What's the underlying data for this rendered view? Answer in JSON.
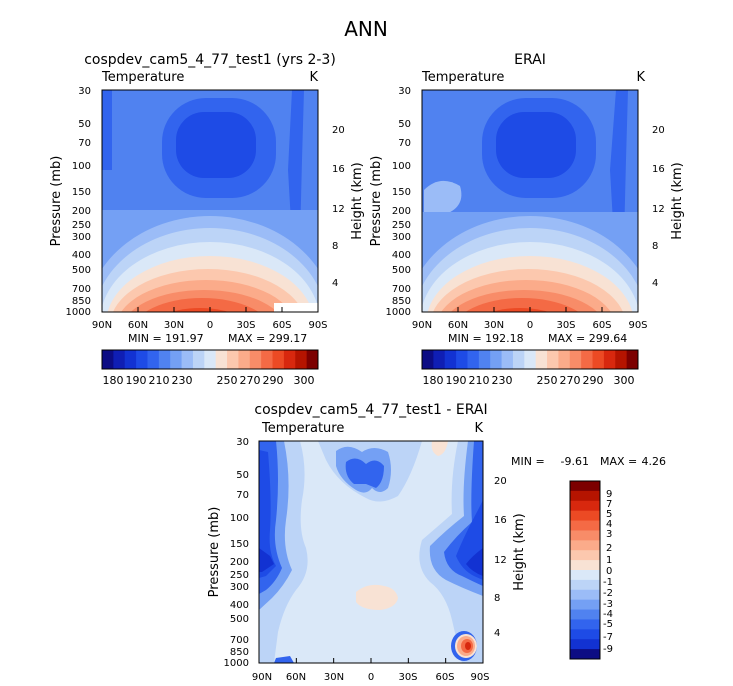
{
  "figure_title": "ANN",
  "chart_data": [
    {
      "type": "heatmap",
      "subtitle": "cospdev_cam5_4_77_test1 (yrs 2-3)",
      "variable": "Temperature",
      "units": "K",
      "ylabel": "Pressure (mb)",
      "ylabel_right": "Height (km)",
      "pressure_ticks": [
        "30",
        "50",
        "70",
        "100",
        "150",
        "200",
        "250",
        "300",
        "400",
        "500",
        "700",
        "850",
        "1000"
      ],
      "height_ticks": [
        "20",
        "16",
        "12",
        "8",
        "4"
      ],
      "lat_ticks": [
        "90N",
        "60N",
        "30N",
        "0",
        "30S",
        "60S",
        "90S"
      ],
      "min_label": "MIN = 191.97",
      "max_label": "MAX = 299.17",
      "min_value": 191.97,
      "max_value": 299.17,
      "colorbar": {
        "labels": [
          "180",
          "190",
          "210",
          "230",
          "250",
          "270",
          "290",
          "300"
        ],
        "colors": [
          "#0c0c84",
          "#0f1eb4",
          "#1232d2",
          "#1e4be6",
          "#3264ee",
          "#5082f0",
          "#74a0f4",
          "#9bbcf7",
          "#bcd4f7",
          "#dae8f8",
          "#f8e2d4",
          "#fcc8ae",
          "#fbab8a",
          "#f88c68",
          "#f46a45",
          "#ec4a24",
          "#d8280e",
          "#b51400",
          "#7c0000"
        ]
      }
    },
    {
      "type": "heatmap",
      "subtitle": "ERAI",
      "variable": "Temperature",
      "units": "K",
      "ylabel": "Pressure (mb)",
      "ylabel_right": "Height (km)",
      "pressure_ticks": [
        "30",
        "50",
        "70",
        "100",
        "150",
        "200",
        "250",
        "300",
        "400",
        "500",
        "700",
        "850",
        "1000"
      ],
      "height_ticks": [
        "20",
        "16",
        "12",
        "8",
        "4"
      ],
      "lat_ticks": [
        "90N",
        "60N",
        "30N",
        "0",
        "30S",
        "60S",
        "90S"
      ],
      "min_label": "MIN = 192.18",
      "max_label": "MAX = 299.64",
      "min_value": 192.18,
      "max_value": 299.64,
      "colorbar": {
        "labels": [
          "180",
          "190",
          "210",
          "230",
          "250",
          "270",
          "290",
          "300"
        ],
        "colors": [
          "#0c0c84",
          "#0f1eb4",
          "#1232d2",
          "#1e4be6",
          "#3264ee",
          "#5082f0",
          "#74a0f4",
          "#9bbcf7",
          "#bcd4f7",
          "#dae8f8",
          "#f8e2d4",
          "#fcc8ae",
          "#fbab8a",
          "#f88c68",
          "#f46a45",
          "#ec4a24",
          "#d8280e",
          "#b51400",
          "#7c0000"
        ]
      }
    },
    {
      "type": "heatmap",
      "subtitle": "cospdev_cam5_4_77_test1 - ERAI",
      "variable": "Temperature",
      "units": "K",
      "ylabel": "Pressure (mb)",
      "ylabel_right": "Height (km)",
      "pressure_ticks": [
        "30",
        "50",
        "70",
        "100",
        "150",
        "200",
        "250",
        "300",
        "400",
        "500",
        "700",
        "850",
        "1000"
      ],
      "height_ticks": [
        "20",
        "16",
        "12",
        "8",
        "4"
      ],
      "lat_ticks": [
        "90N",
        "60N",
        "30N",
        "0",
        "30S",
        "60S",
        "90S"
      ],
      "min_label": "MIN =",
      "min_value_label": "-9.61",
      "max_label": "MAX =",
      "max_value_label": "4.26",
      "min_value": -9.61,
      "max_value": 4.26,
      "colorbar": {
        "labels": [
          "9",
          "7",
          "5",
          "4",
          "3",
          "2",
          "1",
          "0",
          "-1",
          "-2",
          "-3",
          "-4",
          "-5",
          "-7",
          "-9"
        ],
        "colors": [
          "#7c0000",
          "#b51400",
          "#d8280e",
          "#ec4a24",
          "#f46a45",
          "#f88c68",
          "#fbab8a",
          "#fcc8ae",
          "#f8e2d4",
          "#dae8f8",
          "#bcd4f7",
          "#9bbcf7",
          "#74a0f4",
          "#5082f0",
          "#3264ee",
          "#1e4be6",
          "#1232d2",
          "#0c0c84"
        ]
      }
    }
  ]
}
